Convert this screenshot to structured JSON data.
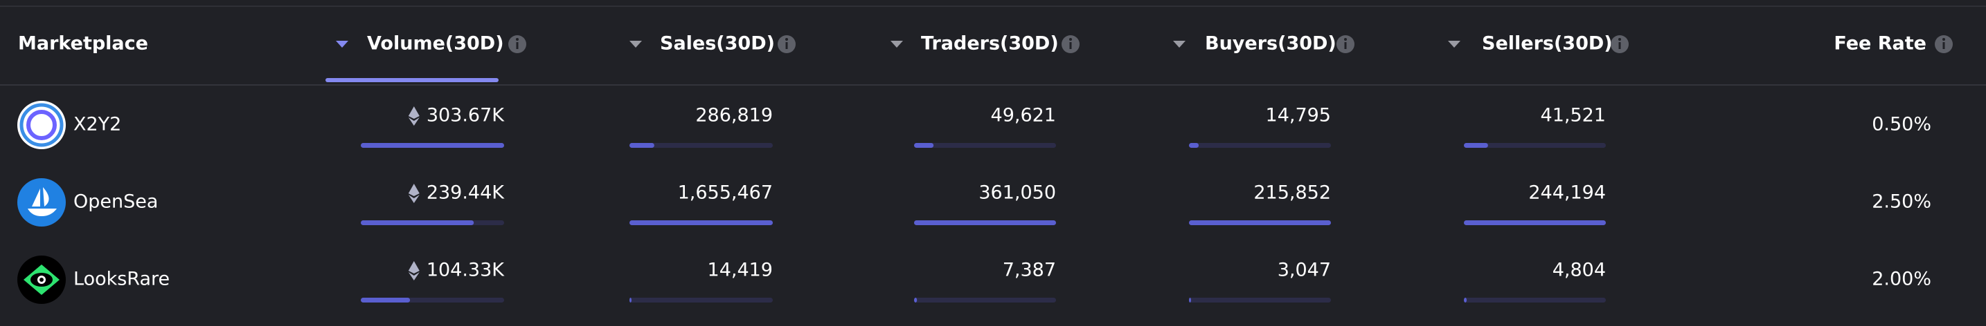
{
  "table": {
    "columns": [
      "Marketplace",
      "Volume(30D)",
      "Sales(30D)",
      "Traders(30D)",
      "Buyers(30D)",
      "Sellers(30D)",
      "Fee Rate"
    ],
    "rows": [
      [
        "X2Y2",
        "303.67K",
        "286,819",
        "49,621",
        "14,795",
        "41,521",
        "0.50%"
      ],
      [
        "OpenSea",
        "239.44K",
        "1,655,467",
        "361,050",
        "215,852",
        "244,194",
        "2.50%"
      ],
      [
        "LooksRare",
        "104.33K",
        "14,419",
        "7,387",
        "3,047",
        "4,804",
        "2.00%"
      ]
    ]
  }
}
